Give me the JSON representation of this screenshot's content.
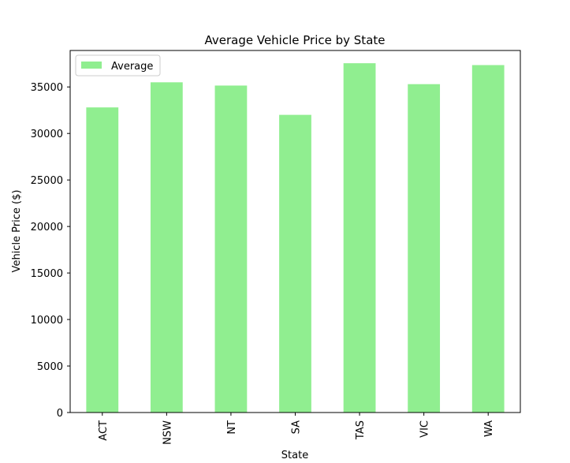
{
  "chart_data": {
    "type": "bar",
    "title": "Average Vehicle Price by State",
    "xlabel": "State",
    "ylabel": "Vehicle Price ($)",
    "categories": [
      "ACT",
      "NSW",
      "NT",
      "SA",
      "TAS",
      "VIC",
      "WA"
    ],
    "series": [
      {
        "name": "Average",
        "values": [
          32800,
          35500,
          35150,
          32000,
          37550,
          35300,
          37350
        ]
      }
    ],
    "ylim": [
      0,
      38920
    ],
    "yticks": [
      0,
      5000,
      10000,
      15000,
      20000,
      25000,
      30000,
      35000
    ],
    "ytick_labels": [
      "0",
      "5000",
      "10000",
      "15000",
      "20000",
      "25000",
      "30000",
      "35000"
    ],
    "grid": false,
    "legend_position": "upper-left",
    "colors": {
      "bar": "#90ee90",
      "axis": "#000000",
      "background": "#ffffff"
    }
  }
}
